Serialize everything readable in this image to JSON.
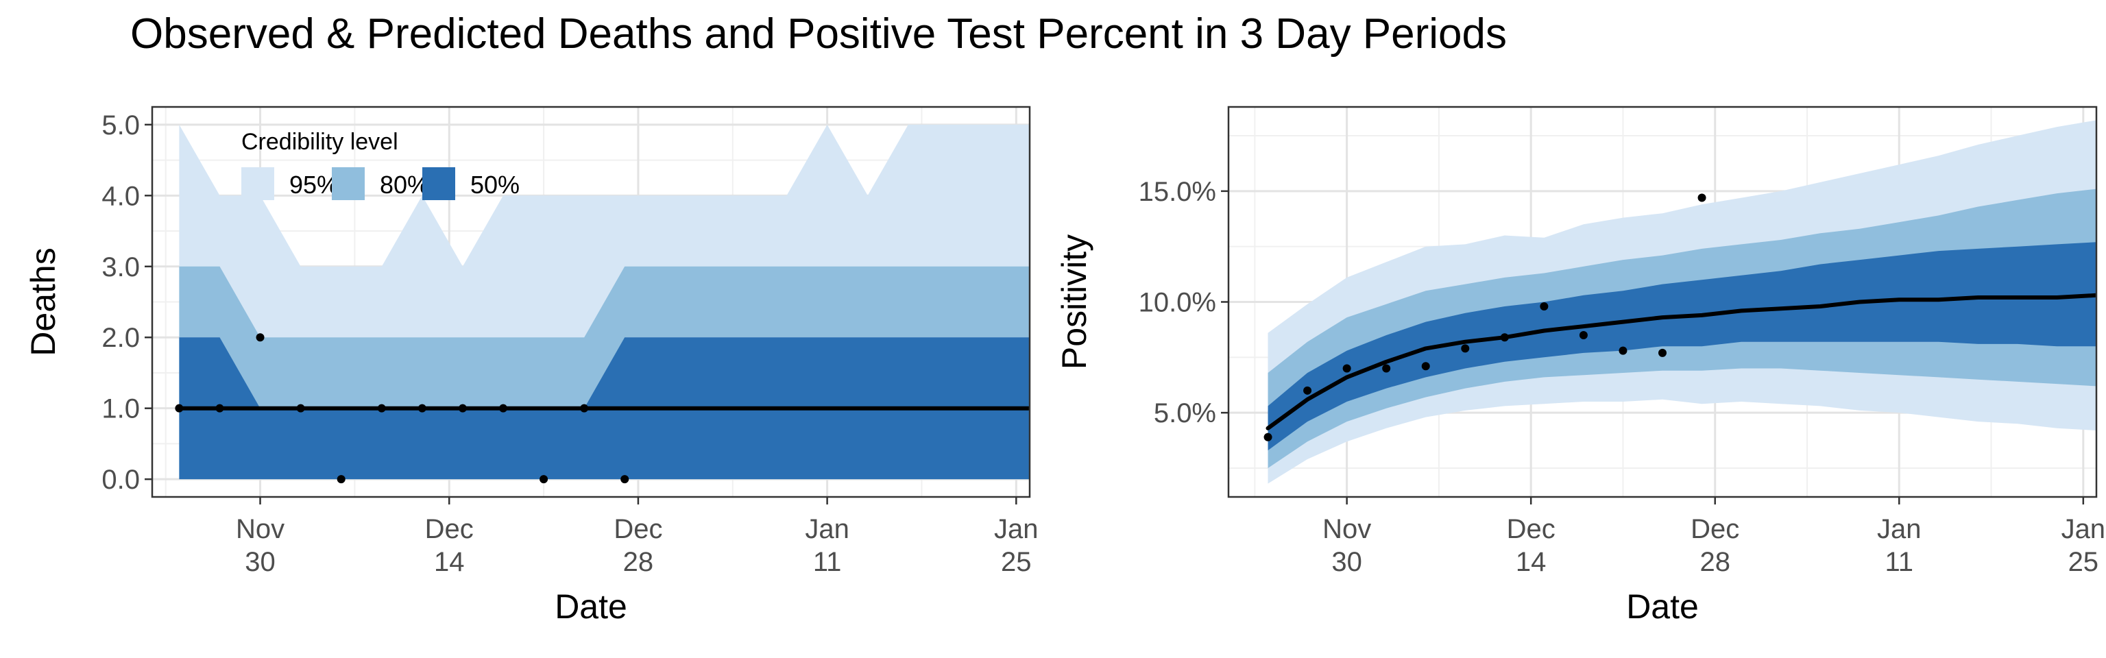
{
  "title": "Observed & Predicted Deaths and Positive Test Percent in 3 Day Periods",
  "colors": {
    "band95": "#d6e6f5",
    "band80": "#90bedd",
    "band50": "#2a6fb3",
    "median": "#000000",
    "grid_major": "#e3e3e3",
    "grid_minor": "#f0f0f0",
    "axis_text": "#4d4d4d"
  },
  "chart_data": [
    {
      "type": "area",
      "title": "",
      "xlabel": "Date",
      "ylabel": "Deaths",
      "x_axis_kind": "date",
      "xlim": [
        "2020-11-22",
        "2021-01-26"
      ],
      "ylim": [
        -0.25,
        5.25
      ],
      "x_ticks": [
        {
          "date": "2020-11-30",
          "line1": "Nov",
          "line2": "30"
        },
        {
          "date": "2020-12-14",
          "line1": "Dec",
          "line2": "14"
        },
        {
          "date": "2020-12-28",
          "line1": "Dec",
          "line2": "28"
        },
        {
          "date": "2021-01-11",
          "line1": "Jan",
          "line2": "11"
        },
        {
          "date": "2021-01-25",
          "line1": "Jan",
          "line2": "25"
        }
      ],
      "y_ticks": [
        {
          "value": 0,
          "label": "0.0"
        },
        {
          "value": 1,
          "label": "1.0"
        },
        {
          "value": 2,
          "label": "2.0"
        },
        {
          "value": 3,
          "label": "3.0"
        },
        {
          "value": 4,
          "label": "4.0"
        },
        {
          "value": 5,
          "label": "5.0"
        }
      ],
      "grid": true,
      "legend": {
        "title": "Credibility level",
        "placement": "top-left",
        "entries": [
          {
            "label": "95%",
            "band": "band95"
          },
          {
            "label": "80%",
            "band": "band80"
          },
          {
            "label": "50%",
            "band": "band50"
          }
        ]
      },
      "bands": {
        "dates": [
          "2020-11-24",
          "2020-11-27",
          "2020-11-30",
          "2020-12-03",
          "2020-12-06",
          "2020-12-09",
          "2020-12-12",
          "2020-12-15",
          "2020-12-18",
          "2020-12-21",
          "2020-12-24",
          "2020-12-27",
          "2020-12-30",
          "2021-01-02",
          "2021-01-05",
          "2021-01-08",
          "2021-01-11",
          "2021-01-14",
          "2021-01-17",
          "2021-01-20",
          "2021-01-23",
          "2021-01-26"
        ],
        "lo95": [
          0,
          0,
          0,
          0,
          0,
          0,
          0,
          0,
          0,
          0,
          0,
          0,
          0,
          0,
          0,
          0,
          0,
          0,
          0,
          0,
          0,
          0
        ],
        "hi95": [
          5,
          4,
          4,
          3,
          3,
          3,
          4,
          3,
          4,
          4,
          4,
          4,
          4,
          4,
          4,
          4,
          5,
          4,
          5,
          5,
          5,
          5
        ],
        "lo80": [
          0,
          0,
          0,
          0,
          0,
          0,
          0,
          0,
          0,
          0,
          0,
          0,
          0,
          0,
          0,
          0,
          0,
          0,
          0,
          0,
          0,
          0
        ],
        "hi80": [
          3,
          3,
          2,
          2,
          2,
          2,
          2,
          2,
          2,
          2,
          2,
          3,
          3,
          3,
          3,
          3,
          3,
          3,
          3,
          3,
          3,
          3
        ],
        "lo50": [
          0,
          0,
          0,
          0,
          0,
          0,
          0,
          0,
          0,
          0,
          0,
          0,
          0,
          0,
          0,
          0,
          0,
          0,
          0,
          0,
          0,
          0
        ],
        "hi50": [
          2,
          2,
          1,
          1,
          1,
          1,
          1,
          1,
          1,
          1,
          1,
          2,
          2,
          2,
          2,
          2,
          2,
          2,
          2,
          2,
          2,
          2
        ]
      },
      "median": {
        "dates": [
          "2020-11-24",
          "2021-01-26"
        ],
        "values": [
          1,
          1
        ]
      },
      "observed": [
        {
          "date": "2020-11-24",
          "value": 1
        },
        {
          "date": "2020-11-27",
          "value": 1
        },
        {
          "date": "2020-11-30",
          "value": 2
        },
        {
          "date": "2020-12-03",
          "value": 1
        },
        {
          "date": "2020-12-06",
          "value": 0
        },
        {
          "date": "2020-12-09",
          "value": 1
        },
        {
          "date": "2020-12-12",
          "value": 1
        },
        {
          "date": "2020-12-15",
          "value": 1
        },
        {
          "date": "2020-12-18",
          "value": 1
        },
        {
          "date": "2020-12-21",
          "value": 0
        },
        {
          "date": "2020-12-24",
          "value": 1
        },
        {
          "date": "2020-12-27",
          "value": 0
        }
      ]
    },
    {
      "type": "area",
      "title": "",
      "xlabel": "Date",
      "ylabel": "Positivity",
      "x_axis_kind": "date",
      "xlim": [
        "2020-11-21",
        "2021-01-26"
      ],
      "ylim": [
        1.2,
        18.8
      ],
      "x_ticks": [
        {
          "date": "2020-11-30",
          "line1": "Nov",
          "line2": "30"
        },
        {
          "date": "2020-12-14",
          "line1": "Dec",
          "line2": "14"
        },
        {
          "date": "2020-12-28",
          "line1": "Dec",
          "line2": "28"
        },
        {
          "date": "2021-01-11",
          "line1": "Jan",
          "line2": "11"
        },
        {
          "date": "2021-01-25",
          "line1": "Jan",
          "line2": "25"
        }
      ],
      "y_ticks": [
        {
          "value": 5,
          "label": "5.0%"
        },
        {
          "value": 10,
          "label": "10.0%"
        },
        {
          "value": 15,
          "label": "15.0%"
        }
      ],
      "grid": true,
      "bands": {
        "dates": [
          "2020-11-24",
          "2020-11-27",
          "2020-11-30",
          "2020-12-03",
          "2020-12-06",
          "2020-12-09",
          "2020-12-12",
          "2020-12-15",
          "2020-12-18",
          "2020-12-21",
          "2020-12-24",
          "2020-12-27",
          "2020-12-30",
          "2021-01-02",
          "2021-01-05",
          "2021-01-08",
          "2021-01-11",
          "2021-01-14",
          "2021-01-17",
          "2021-01-20",
          "2021-01-23",
          "2021-01-26"
        ],
        "lo95": [
          1.8,
          2.9,
          3.7,
          4.3,
          4.8,
          5.1,
          5.3,
          5.4,
          5.5,
          5.5,
          5.6,
          5.4,
          5.5,
          5.4,
          5.3,
          5.1,
          5.0,
          4.8,
          4.6,
          4.5,
          4.3,
          4.2
        ],
        "hi95": [
          8.6,
          9.9,
          11.1,
          11.8,
          12.5,
          12.6,
          13.0,
          12.9,
          13.5,
          13.8,
          14.0,
          14.4,
          14.7,
          15.0,
          15.4,
          15.8,
          16.2,
          16.6,
          17.1,
          17.5,
          17.9,
          18.2
        ],
        "lo80": [
          2.5,
          3.7,
          4.6,
          5.2,
          5.7,
          6.1,
          6.4,
          6.6,
          6.7,
          6.8,
          6.9,
          6.9,
          7.0,
          7.0,
          6.9,
          6.8,
          6.7,
          6.6,
          6.5,
          6.4,
          6.3,
          6.2
        ],
        "hi80": [
          6.8,
          8.2,
          9.3,
          9.9,
          10.5,
          10.8,
          11.1,
          11.3,
          11.6,
          11.9,
          12.1,
          12.4,
          12.6,
          12.8,
          13.1,
          13.3,
          13.6,
          13.9,
          14.3,
          14.6,
          14.9,
          15.1
        ],
        "lo50": [
          3.3,
          4.6,
          5.5,
          6.1,
          6.6,
          7.0,
          7.3,
          7.5,
          7.7,
          7.8,
          8.0,
          8.0,
          8.2,
          8.2,
          8.2,
          8.2,
          8.2,
          8.2,
          8.1,
          8.1,
          8.0,
          8.0
        ],
        "hi50": [
          5.3,
          6.8,
          7.8,
          8.5,
          9.1,
          9.5,
          9.8,
          10.0,
          10.3,
          10.5,
          10.8,
          11.0,
          11.2,
          11.4,
          11.7,
          11.9,
          12.1,
          12.3,
          12.4,
          12.5,
          12.6,
          12.7
        ]
      },
      "median": {
        "dates": [
          "2020-11-24",
          "2020-11-27",
          "2020-11-30",
          "2020-12-03",
          "2020-12-06",
          "2020-12-09",
          "2020-12-12",
          "2020-12-15",
          "2020-12-18",
          "2020-12-21",
          "2020-12-24",
          "2020-12-27",
          "2020-12-30",
          "2021-01-02",
          "2021-01-05",
          "2021-01-08",
          "2021-01-11",
          "2021-01-14",
          "2021-01-17",
          "2021-01-20",
          "2021-01-23",
          "2021-01-26"
        ],
        "values": [
          4.3,
          5.6,
          6.6,
          7.3,
          7.9,
          8.2,
          8.4,
          8.7,
          8.9,
          9.1,
          9.3,
          9.4,
          9.6,
          9.7,
          9.8,
          10.0,
          10.1,
          10.1,
          10.2,
          10.2,
          10.2,
          10.3
        ]
      },
      "observed": [
        {
          "date": "2020-11-24",
          "value": 3.9
        },
        {
          "date": "2020-11-27",
          "value": 6.0
        },
        {
          "date": "2020-11-30",
          "value": 7.0
        },
        {
          "date": "2020-12-03",
          "value": 7.0
        },
        {
          "date": "2020-12-06",
          "value": 7.1
        },
        {
          "date": "2020-12-09",
          "value": 7.9
        },
        {
          "date": "2020-12-12",
          "value": 8.4
        },
        {
          "date": "2020-12-15",
          "value": 9.8
        },
        {
          "date": "2020-12-18",
          "value": 8.5
        },
        {
          "date": "2020-12-21",
          "value": 7.8
        },
        {
          "date": "2020-12-24",
          "value": 7.7
        },
        {
          "date": "2020-12-27",
          "value": 14.7
        }
      ]
    }
  ]
}
